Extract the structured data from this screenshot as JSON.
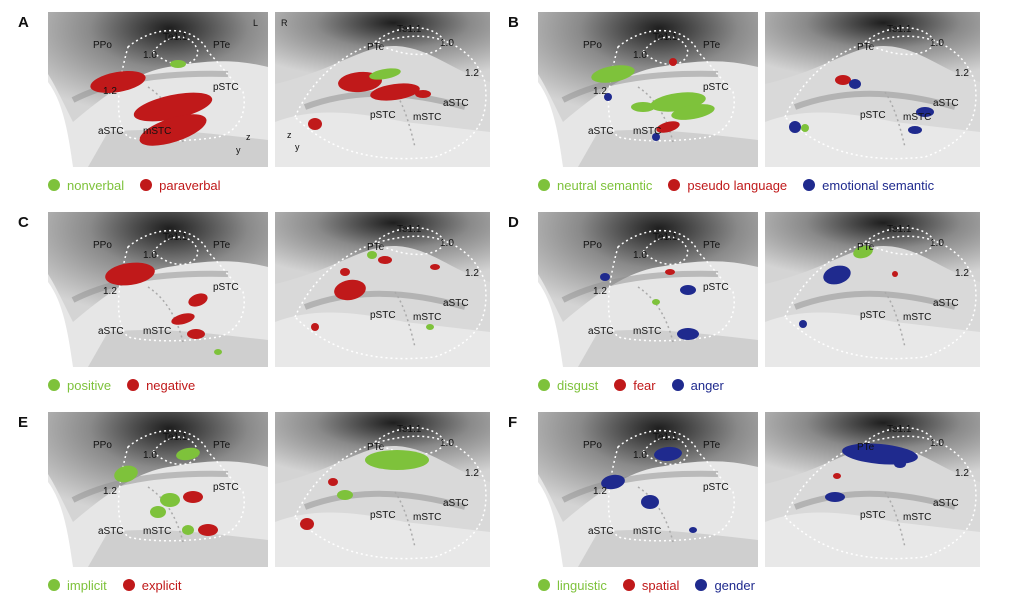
{
  "colors": {
    "green": "#7ec23b",
    "red": "#c0191a",
    "blue": "#1f2a8e"
  },
  "hemispheres": {
    "left": "L",
    "right": "R"
  },
  "axes": {
    "z": "z",
    "y": "y"
  },
  "left_labels": {
    "ppo": "PPo",
    "te11": "Te1.1",
    "v10": "1.0",
    "pte": "PTe",
    "v12": "1.2",
    "pstc": "pSTC",
    "astc": "aSTC",
    "mstc": "mSTC"
  },
  "right_labels": {
    "pte": "PTe",
    "te11": "Te1.1",
    "v10": "1.0",
    "v12": "1.2",
    "pstc": "pSTC",
    "mstc": "mSTC",
    "astc": "aSTC"
  },
  "panels": [
    {
      "letter": "A",
      "legend": [
        {
          "label": "nonverbal",
          "color": "green"
        },
        {
          "label": "paraverbal",
          "color": "red"
        }
      ]
    },
    {
      "letter": "B",
      "legend": [
        {
          "label": "neutral semantic",
          "color": "green"
        },
        {
          "label": "pseudo language",
          "color": "red"
        },
        {
          "label": "emotional semantic",
          "color": "blue"
        }
      ]
    },
    {
      "letter": "C",
      "legend": [
        {
          "label": "positive",
          "color": "green"
        },
        {
          "label": "negative",
          "color": "red"
        }
      ]
    },
    {
      "letter": "D",
      "legend": [
        {
          "label": "disgust",
          "color": "green"
        },
        {
          "label": "fear",
          "color": "red"
        },
        {
          "label": "anger",
          "color": "blue"
        }
      ]
    },
    {
      "letter": "E",
      "legend": [
        {
          "label": "implicit",
          "color": "green"
        },
        {
          "label": "explicit",
          "color": "red"
        }
      ]
    },
    {
      "letter": "F",
      "legend": [
        {
          "label": "linguistic",
          "color": "green"
        },
        {
          "label": "spatial",
          "color": "red"
        },
        {
          "label": "gender",
          "color": "blue"
        }
      ]
    }
  ]
}
